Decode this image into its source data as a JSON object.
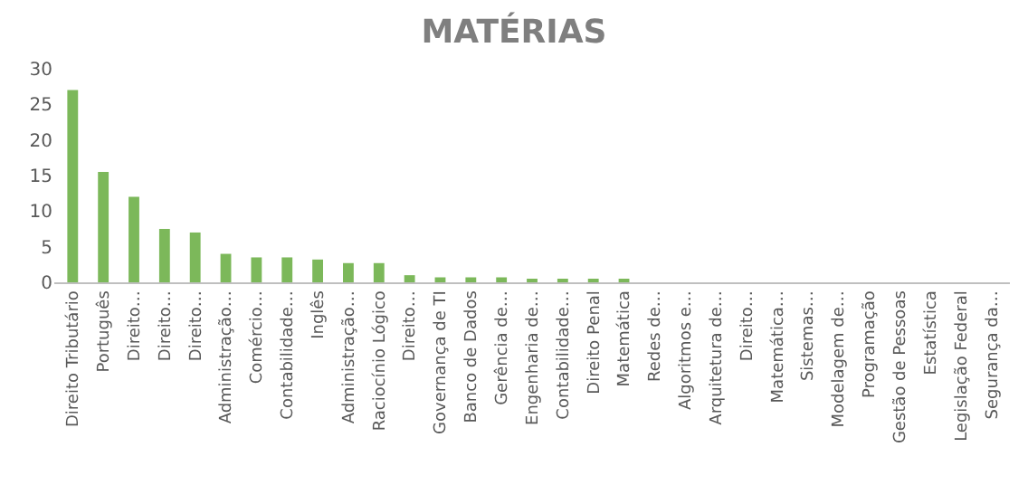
{
  "chart_data": {
    "type": "bar",
    "title": "MATÉRIAS",
    "categories": [
      "Direito Tributário",
      "Português",
      "Direito…",
      "Direito…",
      "Direito…",
      "Administração…",
      "Comércio…",
      "Contabilidade…",
      "Inglês",
      "Administração…",
      "Raciocínio Lógico",
      "Direito…",
      "Governança de TI",
      "Banco de Dados",
      "Gerência de…",
      "Engenharia de…",
      "Contabilidade…",
      "Direito Penal",
      "Matemática",
      "Redes de…",
      "Algoritmos e…",
      "Arquitetura de…",
      "Direito…",
      "Matemática…",
      "Sistemas…",
      "Modelagem de…",
      "Programação",
      "Gestão de Pessoas",
      "Estatística",
      "Legislação Federal",
      "Segurança da…"
    ],
    "values": [
      27,
      15.5,
      12,
      7.5,
      7,
      4,
      3.5,
      3.5,
      3.2,
      2.7,
      2.7,
      1,
      0.7,
      0.7,
      0.7,
      0.3,
      0.3,
      0.3,
      0.3,
      0,
      0,
      0,
      0,
      0,
      0,
      0,
      0,
      0,
      0,
      0,
      0
    ],
    "color": "#7cb85a",
    "ylim": [
      0,
      30
    ],
    "yticks": [
      0,
      5,
      10,
      15,
      20,
      25,
      30
    ],
    "grid": false
  }
}
